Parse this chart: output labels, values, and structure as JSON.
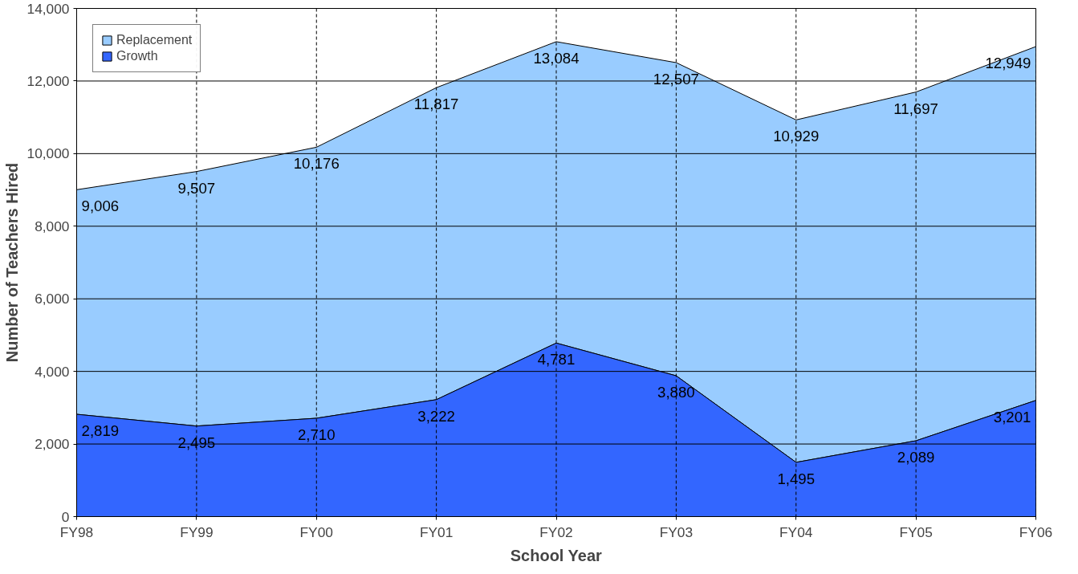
{
  "chart_data": {
    "type": "area",
    "xlabel": "School Year",
    "ylabel": "Number of Teachers Hired",
    "categories": [
      "FY98",
      "FY99",
      "FY00",
      "FY01",
      "FY02",
      "FY03",
      "FY04",
      "FY05",
      "FY06"
    ],
    "series": [
      {
        "name": "Replacement",
        "color": "#99ccff",
        "values": [
          9006,
          9507,
          10176,
          11817,
          13084,
          12507,
          10929,
          11697,
          12949
        ],
        "value_labels": [
          "9,006",
          "9,507",
          "10,176",
          "11,817",
          "13,084",
          "12,507",
          "10,929",
          "11,697",
          "12,949"
        ]
      },
      {
        "name": "Growth",
        "color": "#3366ff",
        "values": [
          2819,
          2495,
          2710,
          3222,
          4781,
          3880,
          1495,
          2089,
          3201
        ],
        "value_labels": [
          "2,819",
          "2,495",
          "2,710",
          "3,222",
          "4,781",
          "3,880",
          "1,495",
          "2,089",
          "3,201"
        ]
      }
    ],
    "ylim": [
      0,
      14000
    ],
    "yticks": [
      {
        "value": 0,
        "label": "0"
      },
      {
        "value": 2000,
        "label": "2,000"
      },
      {
        "value": 4000,
        "label": "4,000"
      },
      {
        "value": 6000,
        "label": "6,000"
      },
      {
        "value": 8000,
        "label": "8,000"
      },
      {
        "value": 10000,
        "label": "10,000"
      },
      {
        "value": 12000,
        "label": "12,000"
      },
      {
        "value": 14000,
        "label": "14,000"
      }
    ],
    "grid": true,
    "legend": "top left"
  }
}
